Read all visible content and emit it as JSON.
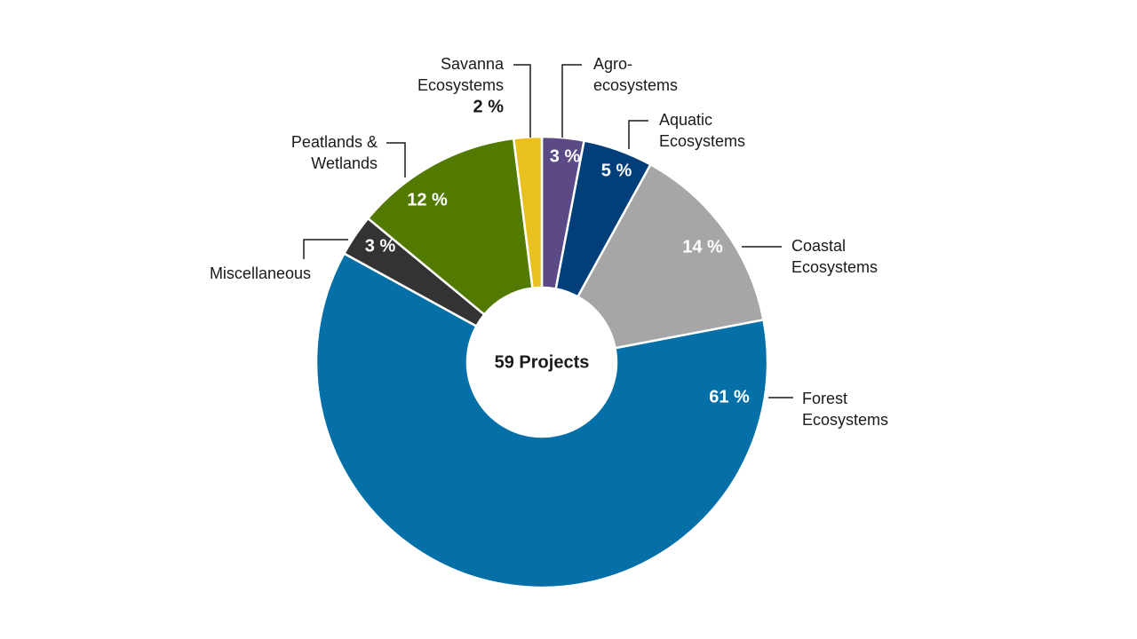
{
  "chart_data": {
    "type": "pie",
    "center_label": "59 Projects",
    "categories": [
      [
        "Agro-",
        "ecosystems"
      ],
      [
        "Aquatic",
        "Ecosystems"
      ],
      [
        "Coastal",
        "Ecosystems"
      ],
      [
        "Forest",
        "Ecosystems"
      ],
      [
        "Miscellaneous"
      ],
      [
        "Peatlands &",
        "Wetlands"
      ],
      [
        "Savanna",
        "Ecosystems"
      ]
    ],
    "values": [
      3,
      5,
      14,
      61,
      3,
      12,
      2
    ],
    "value_labels": [
      "3 %",
      "5 %",
      "14 %",
      "61 %",
      "3 %",
      "12 %",
      "2 %"
    ],
    "colors": [
      "#5b4a86",
      "#003f7a",
      "#a5a6a5",
      "#0570a8",
      "#333333",
      "#527a00",
      "#e8c11f"
    ]
  }
}
